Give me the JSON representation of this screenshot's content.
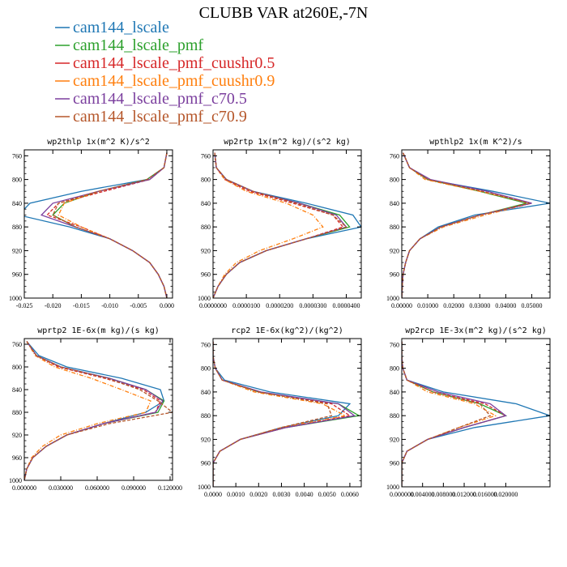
{
  "title": "CLUBB VAR at260E,-7N",
  "legend": [
    {
      "name": "cam144_lscale",
      "color": "#1f77b4",
      "dash": "solid"
    },
    {
      "name": "cam144_lscale_pmf",
      "color": "#2ca02c",
      "dash": "solid"
    },
    {
      "name": "cam144_lscale_pmf_cuushr0.5",
      "color": "#d62728",
      "dash": "solid"
    },
    {
      "name": "cam144_lscale_pmf_cuushr0.9",
      "color": "#ff7f0e",
      "dash": "solid"
    },
    {
      "name": "cam144_lscale_pmf_c70.5",
      "color": "#7b3f9e",
      "dash": "solid"
    },
    {
      "name": "cam144_lscale_pmf_c70.9",
      "color": "#b5562a",
      "dash": "solid"
    }
  ],
  "chart_data": [
    {
      "type": "line",
      "title": "wp2thlp  1x(m^2 K)/s^2",
      "ylim": [
        1000,
        750
      ],
      "xlim": [
        -0.025,
        0.001
      ],
      "yticks": [
        "760",
        "800",
        "840",
        "880",
        "920",
        "960",
        "1000"
      ],
      "xticks": [
        "-0.025",
        "-0.020",
        "-0.015",
        "-0.010",
        "-0.005",
        "0.000"
      ],
      "xtickvals": [
        -0.025,
        -0.02,
        -0.015,
        -0.01,
        -0.005,
        0.0
      ],
      "y": [
        755,
        780,
        800,
        820,
        840,
        860,
        880,
        900,
        920,
        940,
        960,
        980,
        1000
      ],
      "series": [
        {
          "name": "cam144_lscale",
          "style": "solid",
          "values": [
            0.0,
            -0.0005,
            -0.0035,
            -0.015,
            -0.024,
            -0.026,
            -0.017,
            -0.01,
            -0.006,
            -0.003,
            -0.0015,
            -0.0005,
            0.0
          ]
        },
        {
          "name": "cam144_lscale_pmf",
          "style": "solid",
          "values": [
            0.0,
            -0.0005,
            -0.0035,
            -0.012,
            -0.018,
            -0.02,
            -0.016,
            -0.01,
            -0.006,
            -0.003,
            -0.0015,
            -0.0005,
            0.0
          ]
        },
        {
          "name": "cam144_lscale_pmf_cuushr0.5",
          "style": "dash",
          "values": [
            0.0,
            -0.0005,
            -0.003,
            -0.011,
            -0.019,
            -0.021,
            -0.015,
            -0.01,
            -0.006,
            -0.003,
            -0.0015,
            -0.0005,
            0.0
          ]
        },
        {
          "name": "cam144_lscale_pmf_cuushr0.9",
          "style": "dashdot",
          "values": [
            0.0,
            -0.0005,
            -0.003,
            -0.012,
            -0.018,
            -0.019,
            -0.015,
            -0.01,
            -0.006,
            -0.003,
            -0.0015,
            -0.0005,
            0.0
          ]
        },
        {
          "name": "cam144_lscale_pmf_c70.5",
          "style": "solid",
          "values": [
            0.0,
            -0.0005,
            -0.003,
            -0.012,
            -0.02,
            -0.022,
            -0.016,
            -0.01,
            -0.006,
            -0.003,
            -0.0015,
            -0.0005,
            0.0
          ]
        },
        {
          "name": "cam144_lscale_pmf_c70.9",
          "style": "dash",
          "values": [
            0.0,
            -0.0005,
            -0.0035,
            -0.012,
            -0.019,
            -0.02,
            -0.016,
            -0.01,
            -0.006,
            -0.003,
            -0.0015,
            -0.0005,
            0.0
          ]
        }
      ]
    },
    {
      "type": "line",
      "title": "wp2rtp  1x(m^2 kg)/(s^2 kg)",
      "ylim": [
        1000,
        750
      ],
      "xlim": [
        0.0,
        4.45e-05
      ],
      "yticks": [
        "760",
        "800",
        "840",
        "880",
        "920",
        "960",
        "1000"
      ],
      "xticks": [
        "0.0000000",
        "0.0000100",
        "0.0000200",
        "0.0000300",
        "0.0000400"
      ],
      "xtickvals": [
        0.0,
        1e-05,
        2e-05,
        3e-05,
        4e-05
      ],
      "y": [
        755,
        780,
        800,
        820,
        840,
        860,
        880,
        900,
        920,
        940,
        960,
        980,
        1000
      ],
      "series": [
        {
          "name": "cam144_lscale",
          "style": "solid",
          "values": [
            5e-07,
            1e-06,
            4e-06,
            1.2e-05,
            2.8e-05,
            4.2e-05,
            4.45e-05,
            2.8e-05,
            1.6e-05,
            8e-06,
            4e-06,
            1.5e-06,
            0.0
          ]
        },
        {
          "name": "cam144_lscale_pmf",
          "style": "solid",
          "values": [
            5e-07,
            1e-06,
            4e-06,
            1.2e-05,
            2.6e-05,
            3.8e-05,
            4.1e-05,
            2.8e-05,
            1.6e-05,
            8e-06,
            4e-06,
            1.5e-06,
            0.0
          ]
        },
        {
          "name": "cam144_lscale_pmf_cuushr0.5",
          "style": "dash",
          "values": [
            5e-07,
            1e-06,
            3.5e-06,
            1.1e-05,
            2.4e-05,
            3.6e-05,
            3.9e-05,
            2.8e-05,
            1.6e-05,
            8e-06,
            4e-06,
            1.5e-06,
            0.0
          ]
        },
        {
          "name": "cam144_lscale_pmf_cuushr0.9",
          "style": "dashdot",
          "values": [
            5e-07,
            1e-06,
            3.5e-06,
            1e-05,
            2.2e-05,
            3e-05,
            3.3e-05,
            2.4e-05,
            1.4e-05,
            7e-06,
            3.5e-06,
            1.5e-06,
            0.0
          ]
        },
        {
          "name": "cam144_lscale_pmf_c70.5",
          "style": "solid",
          "values": [
            5e-07,
            1e-06,
            4e-06,
            1.2e-05,
            2.6e-05,
            3.7e-05,
            4e-05,
            2.8e-05,
            1.6e-05,
            8e-06,
            4e-06,
            1.5e-06,
            0.0
          ]
        },
        {
          "name": "cam144_lscale_pmf_c70.9",
          "style": "dash",
          "values": [
            5e-07,
            1e-06,
            4e-06,
            1.2e-05,
            2.5e-05,
            3.6e-05,
            4e-05,
            2.8e-05,
            1.6e-05,
            8e-06,
            4e-06,
            1.5e-06,
            0.0
          ]
        }
      ]
    },
    {
      "type": "line",
      "title": "wpthlp2  1x(m K^2)/s",
      "ylim": [
        1000,
        750
      ],
      "xlim": [
        0.0,
        0.057
      ],
      "yticks": [
        "760",
        "800",
        "840",
        "880",
        "920",
        "960",
        "1000"
      ],
      "xticks": [
        "0.00000",
        "0.01000",
        "0.02000",
        "0.03000",
        "0.04000",
        "0.05000"
      ],
      "xtickvals": [
        0.0,
        0.01,
        0.02,
        0.03,
        0.04,
        0.05
      ],
      "y": [
        755,
        780,
        800,
        820,
        840,
        860,
        880,
        900,
        920,
        940,
        960,
        980,
        1000
      ],
      "series": [
        {
          "name": "cam144_lscale",
          "style": "solid",
          "values": [
            0.0005,
            0.003,
            0.01,
            0.035,
            0.057,
            0.028,
            0.014,
            0.007,
            0.003,
            0.0015,
            0.0005,
            0.0002,
            0.0
          ]
        },
        {
          "name": "cam144_lscale_pmf",
          "style": "solid",
          "values": [
            0.0005,
            0.003,
            0.01,
            0.03,
            0.048,
            0.03,
            0.015,
            0.007,
            0.003,
            0.0015,
            0.0005,
            0.0002,
            0.0
          ]
        },
        {
          "name": "cam144_lscale_pmf_cuushr0.5",
          "style": "dash",
          "values": [
            0.0005,
            0.003,
            0.01,
            0.031,
            0.049,
            0.03,
            0.015,
            0.007,
            0.003,
            0.0015,
            0.0005,
            0.0002,
            0.0
          ]
        },
        {
          "name": "cam144_lscale_pmf_cuushr0.9",
          "style": "dashdot",
          "values": [
            0.0005,
            0.003,
            0.009,
            0.03,
            0.05,
            0.032,
            0.016,
            0.007,
            0.003,
            0.0015,
            0.0005,
            0.0002,
            0.0
          ]
        },
        {
          "name": "cam144_lscale_pmf_c70.5",
          "style": "solid",
          "values": [
            0.0005,
            0.003,
            0.011,
            0.033,
            0.05,
            0.03,
            0.015,
            0.007,
            0.003,
            0.0015,
            0.0005,
            0.0002,
            0.0
          ]
        },
        {
          "name": "cam144_lscale_pmf_c70.9",
          "style": "dash",
          "values": [
            0.0005,
            0.003,
            0.01,
            0.031,
            0.049,
            0.03,
            0.015,
            0.007,
            0.003,
            0.0015,
            0.0005,
            0.0002,
            0.0
          ]
        }
      ]
    },
    {
      "type": "line",
      "title": "wprtp2  1E-6x(m kg)/(s kg)",
      "ylim": [
        1000,
        750
      ],
      "xlim": [
        0.0,
        0.122
      ],
      "yticks": [
        "760",
        "800",
        "840",
        "880",
        "920",
        "960",
        "1000"
      ],
      "xticks": [
        "0.000000",
        "0.030000",
        "0.060000",
        "0.090000",
        "0.120000"
      ],
      "xtickvals": [
        0.0,
        0.03,
        0.06,
        0.09,
        0.12
      ],
      "y": [
        755,
        780,
        800,
        820,
        840,
        860,
        880,
        900,
        920,
        940,
        960,
        980,
        1000
      ],
      "series": [
        {
          "name": "cam144_lscale",
          "style": "solid",
          "values": [
            0.002,
            0.012,
            0.035,
            0.08,
            0.112,
            0.115,
            0.1,
            0.065,
            0.035,
            0.018,
            0.007,
            0.002,
            0.0
          ]
        },
        {
          "name": "cam144_lscale_pmf",
          "style": "solid",
          "values": [
            0.002,
            0.01,
            0.03,
            0.07,
            0.1,
            0.115,
            0.11,
            0.065,
            0.035,
            0.018,
            0.007,
            0.002,
            0.0
          ]
        },
        {
          "name": "cam144_lscale_pmf_cuushr0.5",
          "style": "dash",
          "values": [
            0.002,
            0.01,
            0.028,
            0.066,
            0.098,
            0.112,
            0.108,
            0.065,
            0.035,
            0.018,
            0.007,
            0.002,
            0.0
          ]
        },
        {
          "name": "cam144_lscale_pmf_cuushr0.9",
          "style": "dashdot",
          "values": [
            0.002,
            0.009,
            0.025,
            0.055,
            0.08,
            0.104,
            0.1,
            0.06,
            0.03,
            0.015,
            0.006,
            0.002,
            0.0
          ]
        },
        {
          "name": "cam144_lscale_pmf_c70.5",
          "style": "solid",
          "values": [
            0.002,
            0.01,
            0.03,
            0.07,
            0.1,
            0.114,
            0.108,
            0.065,
            0.035,
            0.018,
            0.007,
            0.002,
            0.0
          ]
        },
        {
          "name": "cam144_lscale_pmf_c70.9",
          "style": "dash",
          "values": [
            0.002,
            0.01,
            0.03,
            0.068,
            0.095,
            0.11,
            0.122,
            0.07,
            0.035,
            0.018,
            0.007,
            0.002,
            0.0
          ]
        }
      ]
    },
    {
      "type": "line",
      "title": "rcp2  1E-6x(kg^2)/(kg^2)",
      "ylim": [
        1000,
        750
      ],
      "xlim": [
        0.0,
        0.0065
      ],
      "yticks": [
        "760",
        "800",
        "840",
        "880",
        "920",
        "960",
        "1000"
      ],
      "xticks": [
        "0.0000",
        "0.0010",
        "0.0020",
        "0.0030",
        "0.0040",
        "0.0050",
        "0.0060"
      ],
      "xtickvals": [
        0.0,
        0.001,
        0.002,
        0.003,
        0.004,
        0.005,
        0.006
      ],
      "y": [
        755,
        780,
        800,
        820,
        840,
        860,
        880,
        900,
        920,
        940,
        960,
        980,
        1000
      ],
      "series": [
        {
          "name": "cam144_lscale",
          "style": "solid",
          "values": [
            0.0,
            0.0,
            0.0001,
            0.0005,
            0.0025,
            0.006,
            0.0055,
            0.003,
            0.0012,
            0.0003,
            0.0,
            0.0,
            0.0
          ]
        },
        {
          "name": "cam144_lscale_pmf",
          "style": "solid",
          "values": [
            0.0,
            0.0,
            0.0001,
            0.0004,
            0.002,
            0.0055,
            0.0064,
            0.0032,
            0.0012,
            0.0003,
            0.0,
            0.0,
            0.0
          ]
        },
        {
          "name": "cam144_lscale_pmf_cuushr0.5",
          "style": "dash",
          "values": [
            0.0,
            0.0,
            0.0001,
            0.0004,
            0.002,
            0.0052,
            0.006,
            0.0032,
            0.0012,
            0.0003,
            0.0,
            0.0,
            0.0
          ]
        },
        {
          "name": "cam144_lscale_pmf_cuushr0.9",
          "style": "dashdot",
          "values": [
            0.0,
            0.0,
            0.0001,
            0.0004,
            0.0018,
            0.0048,
            0.0058,
            0.003,
            0.0012,
            0.0003,
            0.0,
            0.0,
            0.0
          ]
        },
        {
          "name": "cam144_lscale_pmf_c70.5",
          "style": "solid",
          "values": [
            0.0,
            0.0,
            0.0001,
            0.0004,
            0.0021,
            0.0055,
            0.0062,
            0.0032,
            0.0012,
            0.0003,
            0.0,
            0.0,
            0.0
          ]
        },
        {
          "name": "cam144_lscale_pmf_c70.9",
          "style": "dash",
          "values": [
            0.0,
            0.0,
            0.0001,
            0.0004,
            0.002,
            0.005,
            0.0052,
            0.003,
            0.0012,
            0.0003,
            0.0,
            0.0,
            0.0
          ]
        }
      ]
    },
    {
      "type": "line",
      "title": "wp2rcp  1E-3x(m^2 kg)/(s^2 kg)",
      "ylim": [
        1000,
        750
      ],
      "xlim": [
        0.0,
        0.0285
      ],
      "yticks": [
        "760",
        "800",
        "840",
        "880",
        "920",
        "960",
        "1000"
      ],
      "xticks": [
        "0.000000",
        "0.004000",
        "0.008000",
        "0.012000",
        "0.016000",
        "0.020000"
      ],
      "xtickvals": [
        0.0,
        0.004,
        0.008,
        0.012,
        0.016,
        0.02
      ],
      "y": [
        755,
        780,
        800,
        820,
        840,
        860,
        880,
        900,
        920,
        940,
        960,
        980,
        1000
      ],
      "series": [
        {
          "name": "cam144_lscale",
          "style": "solid",
          "values": [
            0.0,
            0.0,
            0.0002,
            0.001,
            0.008,
            0.022,
            0.0285,
            0.014,
            0.005,
            0.001,
            0.0,
            0.0,
            0.0
          ]
        },
        {
          "name": "cam144_lscale_pmf",
          "style": "solid",
          "values": [
            0.0,
            0.0,
            0.0002,
            0.001,
            0.006,
            0.015,
            0.02,
            0.012,
            0.005,
            0.001,
            0.0,
            0.0,
            0.0
          ]
        },
        {
          "name": "cam144_lscale_pmf_cuushr0.5",
          "style": "dash",
          "values": [
            0.0,
            0.0,
            0.0002,
            0.001,
            0.006,
            0.016,
            0.02,
            0.012,
            0.005,
            0.001,
            0.0,
            0.0,
            0.0
          ]
        },
        {
          "name": "cam144_lscale_pmf_cuushr0.9",
          "style": "dashdot",
          "values": [
            0.0,
            0.0,
            0.0002,
            0.001,
            0.005,
            0.014,
            0.018,
            0.011,
            0.005,
            0.001,
            0.0,
            0.0,
            0.0
          ]
        },
        {
          "name": "cam144_lscale_pmf_c70.5",
          "style": "solid",
          "values": [
            0.0,
            0.0,
            0.0002,
            0.001,
            0.007,
            0.017,
            0.02,
            0.012,
            0.005,
            0.001,
            0.0,
            0.0,
            0.0
          ]
        },
        {
          "name": "cam144_lscale_pmf_c70.9",
          "style": "dash",
          "values": [
            0.0,
            0.0,
            0.0002,
            0.001,
            0.006,
            0.015,
            0.017,
            0.011,
            0.005,
            0.001,
            0.0,
            0.0,
            0.0
          ]
        }
      ]
    }
  ]
}
